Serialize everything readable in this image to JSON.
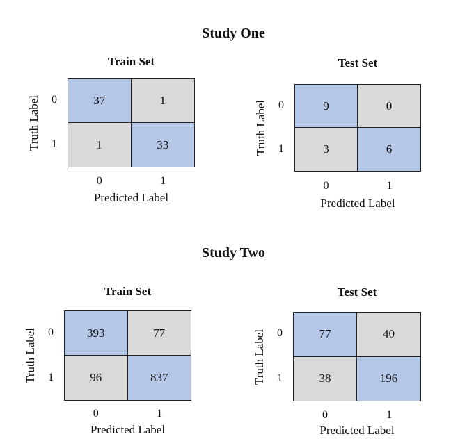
{
  "chart_data": [
    {
      "type": "heatmap",
      "group": "Study One",
      "title": "Train Set",
      "xlabel": "Predicted Label",
      "ylabel": "Truth Label",
      "x_ticks": [
        "0",
        "1"
      ],
      "y_ticks": [
        "0",
        "1"
      ],
      "values": [
        [
          37,
          1
        ],
        [
          1,
          33
        ]
      ]
    },
    {
      "type": "heatmap",
      "group": "Study One",
      "title": "Test Set",
      "xlabel": "Predicted Label",
      "ylabel": "Truth Label",
      "x_ticks": [
        "0",
        "1"
      ],
      "y_ticks": [
        "0",
        "1"
      ],
      "values": [
        [
          9,
          0
        ],
        [
          3,
          6
        ]
      ]
    },
    {
      "type": "heatmap",
      "group": "Study Two",
      "title": "Train Set",
      "xlabel": "Predicted Label",
      "ylabel": "Truth Label",
      "x_ticks": [
        "0",
        "1"
      ],
      "y_ticks": [
        "0",
        "1"
      ],
      "values": [
        [
          393,
          77
        ],
        [
          96,
          837
        ]
      ]
    },
    {
      "type": "heatmap",
      "group": "Study Two",
      "title": "Test Set",
      "xlabel": "Predicted Label",
      "ylabel": "Truth Label",
      "x_ticks": [
        "0",
        "1"
      ],
      "y_ticks": [
        "0",
        "1"
      ],
      "values": [
        [
          77,
          40
        ],
        [
          38,
          196
        ]
      ]
    }
  ],
  "titles": {
    "study_one": "Study One",
    "study_two": "Study Two"
  },
  "colors": {
    "diagonal": "#b4c7e7",
    "off_diagonal": "#d9d9d9",
    "border": "#222222"
  }
}
